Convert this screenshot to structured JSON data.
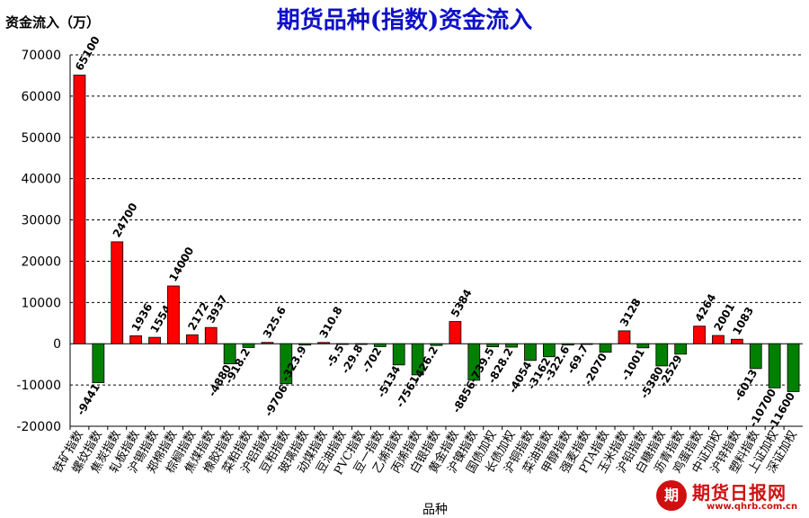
{
  "chart_data": {
    "type": "bar",
    "title": "期货品种(指数)资金流入",
    "ylabel": "资金流入（万）",
    "xlabel": "品种",
    "ylim": [
      -20000,
      70000
    ],
    "yticks": [
      -20000,
      -10000,
      0,
      10000,
      20000,
      30000,
      40000,
      50000,
      60000,
      70000
    ],
    "grid": true,
    "colors": {
      "positive": "#ff0000",
      "negative": "#008000"
    },
    "categories": [
      "铁矿指数",
      "螺纹指数",
      "焦炭指数",
      "轧板指数",
      "沪锡指数",
      "郑棉指数",
      "棕榈指数",
      "焦煤指数",
      "橡胶指数",
      "菜粕指数",
      "沪铝指数",
      "豆粕指数",
      "玻璃指数",
      "动煤指数",
      "豆油指数",
      "PVC指数",
      "豆一指数",
      "乙烯指数",
      "丙烯指数",
      "白银指数",
      "黄金指数",
      "沪镍指数",
      "国债加权",
      "长债加权",
      "沪铜指数",
      "菜油指数",
      "甲醇指数",
      "强麦指数",
      "PTA指数",
      "玉米指数",
      "沪铅指数",
      "白糖指数",
      "沥青指数",
      "鸡蛋指数",
      "中证加权",
      "沪锌指数",
      "塑料指数",
      "上证加权",
      "深证加权"
    ],
    "values": [
      65100,
      -9441,
      24700,
      1936,
      1554,
      14000,
      2172,
      3937,
      -4880,
      -918.2,
      325.6,
      -9706,
      -323.9,
      310.8,
      -5.5,
      -29.8,
      -702,
      -5134,
      -7561,
      -426.2,
      5384,
      -8856,
      -739.5,
      -828.2,
      -4054,
      -3162,
      -322.6,
      -69.7,
      -2070,
      3128,
      -1001,
      -5380,
      -2529,
      4264,
      2001,
      1083,
      -6013,
      -10700,
      -11600
    ],
    "labels": [
      "65100",
      "-9441",
      "24700",
      "1936",
      "1554",
      "14000",
      "2172",
      "3937",
      "-4880",
      "-918.2",
      "325.6",
      "-9706",
      "-323.9",
      "310.8",
      "-5.5",
      "-29.8",
      "-702",
      "-5134",
      "-7561",
      "-426.2",
      "5384",
      "-8856",
      "-739.5",
      "-828.2",
      "-4054",
      "-3162",
      "-322.6",
      "-69.7",
      "-2070",
      "3128",
      "-1001",
      "-5380",
      "-2529",
      "4264",
      "2001",
      "1083",
      "-6013",
      "-10700",
      "-11600"
    ]
  },
  "watermark": {
    "name": "期货日报网",
    "url": "www.qhrb.com.cn"
  }
}
